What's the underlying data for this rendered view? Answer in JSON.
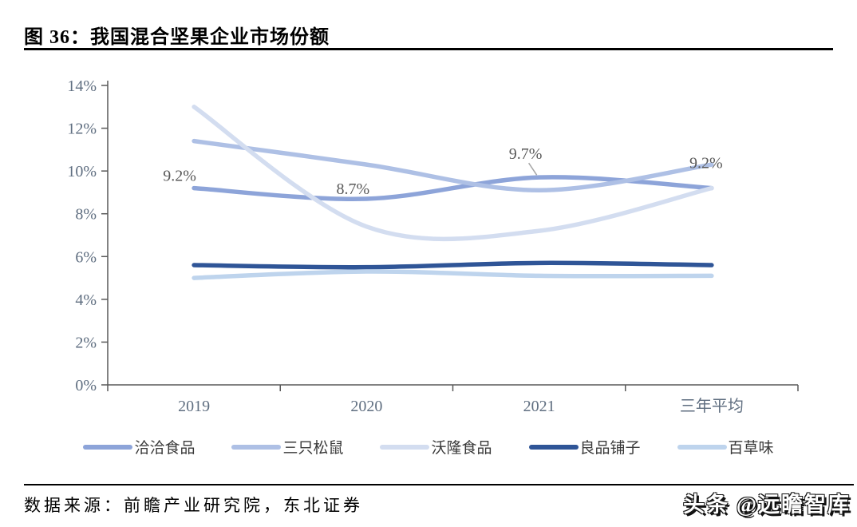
{
  "title": "图 36：我国混合坚果企业市场份额",
  "source": "数据来源：前瞻产业研究院，东北证券",
  "watermark": "头条 @远瞻智库",
  "chart_data": {
    "type": "line",
    "title": "我国混合坚果企业市场份额",
    "categories": [
      "2019",
      "2020",
      "2021",
      "三年平均"
    ],
    "series": [
      {
        "name": "洽洽食品",
        "color": "#8da4d9",
        "values": [
          9.2,
          8.7,
          9.7,
          9.2
        ]
      },
      {
        "name": "三只松鼠",
        "color": "#aec0e5",
        "values": [
          11.4,
          10.3,
          9.1,
          10.3
        ]
      },
      {
        "name": "沃隆食品",
        "color": "#d3ddf0",
        "values": [
          13.0,
          7.4,
          7.2,
          9.2
        ]
      },
      {
        "name": "良品铺子",
        "color": "#2f5597",
        "values": [
          5.6,
          5.5,
          5.7,
          5.6
        ]
      },
      {
        "name": "百草味",
        "color": "#bed4ed",
        "values": [
          5.0,
          5.3,
          5.1,
          5.1
        ]
      }
    ],
    "point_labels": [
      {
        "series_index": 0,
        "point_index": 0,
        "text": "9.2%"
      },
      {
        "series_index": 0,
        "point_index": 1,
        "text": "8.7%"
      },
      {
        "series_index": 0,
        "point_index": 2,
        "text": "9.7%",
        "leader": true
      },
      {
        "series_index": 0,
        "point_index": 3,
        "text": "9.2%"
      }
    ],
    "ylim": [
      0,
      14
    ],
    "ytick_step": 2,
    "ytick_suffix": "%",
    "grid": false,
    "legend_position": "bottom",
    "line_smoothing": true,
    "axis_color": "#595959",
    "data_label_color": "#595959",
    "tick_label_color": "#5f6e80",
    "leader_line_color": "#a6a6a6"
  }
}
